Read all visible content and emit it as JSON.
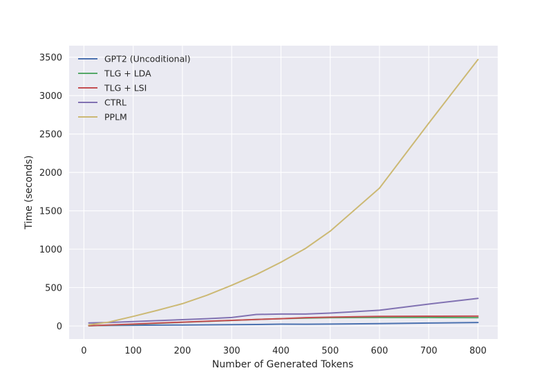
{
  "chart_data": {
    "type": "line",
    "title": "",
    "xlabel": "Number of Generated Tokens",
    "ylabel": "Time (seconds)",
    "xlim": [
      -30,
      840
    ],
    "ylim": [
      -170,
      3650
    ],
    "xticks": [
      0,
      100,
      200,
      300,
      400,
      500,
      600,
      700,
      800
    ],
    "yticks": [
      0,
      500,
      1000,
      1500,
      2000,
      2500,
      3000,
      3500
    ],
    "grid": true,
    "legend_position": "top-left",
    "background": "#eaeaf2",
    "series": [
      {
        "name": "GPT2 (Uncoditional)",
        "color": "#4c72b0",
        "x": [
          10,
          50,
          100,
          150,
          200,
          250,
          300,
          350,
          400,
          450,
          500,
          600,
          700,
          800
        ],
        "y": [
          5,
          7,
          9,
          11,
          13,
          15,
          17,
          19,
          24,
          23,
          25,
          30,
          38,
          45
        ]
      },
      {
        "name": "TLG + LDA",
        "color": "#55a868",
        "x": [
          10,
          50,
          100,
          150,
          200,
          250,
          300,
          350,
          400,
          450,
          500,
          600,
          700,
          800
        ],
        "y": [
          2,
          10,
          22,
          35,
          48,
          60,
          72,
          85,
          95,
          103,
          108,
          110,
          110,
          108
        ]
      },
      {
        "name": "TLG + LSI",
        "color": "#c44e52",
        "x": [
          10,
          50,
          100,
          150,
          200,
          250,
          300,
          350,
          400,
          450,
          500,
          600,
          700,
          800
        ],
        "y": [
          3,
          12,
          25,
          38,
          50,
          62,
          73,
          85,
          95,
          108,
          115,
          125,
          127,
          128
        ]
      },
      {
        "name": "CTRL",
        "color": "#8172b2",
        "x": [
          10,
          50,
          100,
          150,
          200,
          250,
          300,
          350,
          400,
          450,
          500,
          600,
          700,
          800
        ],
        "y": [
          40,
          45,
          58,
          70,
          82,
          95,
          110,
          150,
          155,
          155,
          168,
          205,
          285,
          360
        ]
      },
      {
        "name": "PPLM",
        "color": "#ccb974",
        "x": [
          10,
          50,
          100,
          150,
          200,
          250,
          300,
          350,
          400,
          450,
          500,
          600,
          700,
          800
        ],
        "y": [
          15,
          50,
          125,
          205,
          290,
          400,
          530,
          670,
          830,
          1010,
          1235,
          1795,
          2640,
          3470
        ]
      }
    ]
  }
}
